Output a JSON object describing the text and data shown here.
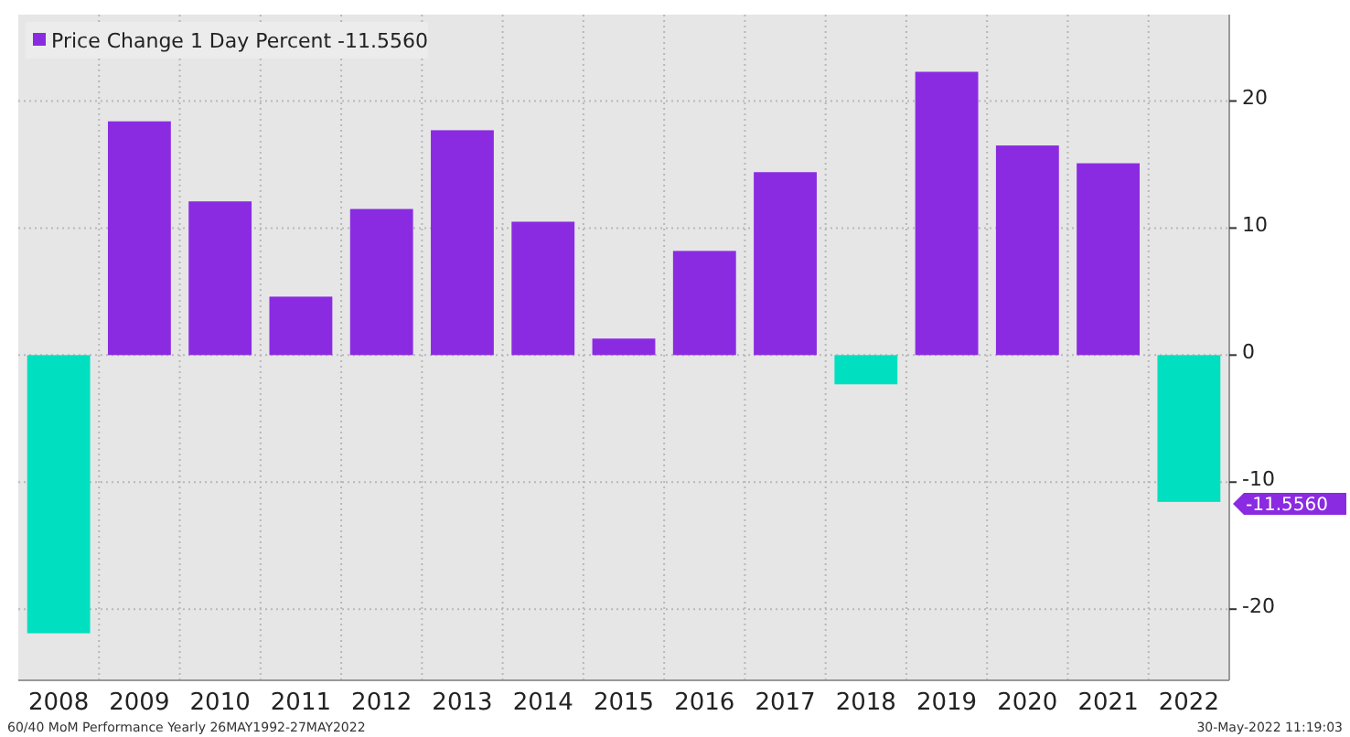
{
  "chart_data": {
    "type": "bar",
    "categories": [
      "2008",
      "2009",
      "2010",
      "2011",
      "2012",
      "2013",
      "2014",
      "2015",
      "2016",
      "2017",
      "2018",
      "2019",
      "2020",
      "2021",
      "2022"
    ],
    "series": [
      {
        "name": "Price Change 1 Day Percent -11.5560",
        "color": "#8a2be2",
        "colors": [
          "#00e0c0",
          "#8a2be2",
          "#8a2be2",
          "#8a2be2",
          "#8a2be2",
          "#8a2be2",
          "#8a2be2",
          "#8a2be2",
          "#8a2be2",
          "#8a2be2",
          "#00e0c0",
          "#8a2be2",
          "#8a2be2",
          "#8a2be2",
          "#00e0c0"
        ],
        "values": [
          -21.9,
          18.4,
          12.1,
          4.6,
          11.5,
          17.7,
          10.5,
          1.3,
          8.2,
          14.4,
          -2.3,
          22.3,
          16.5,
          15.1,
          -11.556
        ]
      }
    ],
    "ylim": [
      -25.6,
      26.8
    ],
    "yticks": [
      -20,
      -10,
      0,
      10,
      20
    ],
    "grid": true,
    "legend": "top left",
    "annotations": [
      "-11.5560",
      "60/40 MoM Performance Yearly 26MAY1992-27MAY2022",
      "30-May-2022 11:19:03"
    ]
  }
}
